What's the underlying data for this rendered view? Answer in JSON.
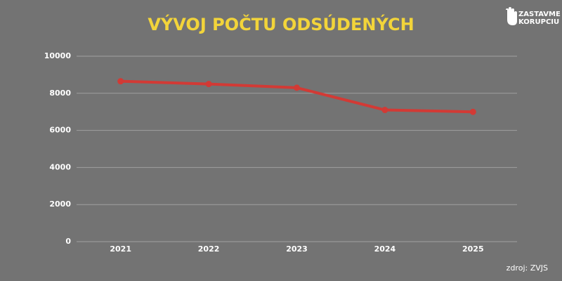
{
  "chart_data": {
    "type": "line",
    "title": "VÝVOJ POČTU ODSÚDENÝCH",
    "categories": [
      "2021",
      "2022",
      "2023",
      "2024",
      "2025"
    ],
    "series": [
      {
        "color": "#d23a35",
        "values": [
          8650,
          8500,
          8300,
          7100,
          7000
        ]
      }
    ],
    "ylim": [
      0,
      10000
    ],
    "yticks": [
      0,
      2000,
      4000,
      6000,
      8000,
      10000
    ],
    "grid": true
  },
  "logo": {
    "line1": "ZASTAVME",
    "line2": "KORUPCIU"
  },
  "source": "zdroj: ZVJS"
}
